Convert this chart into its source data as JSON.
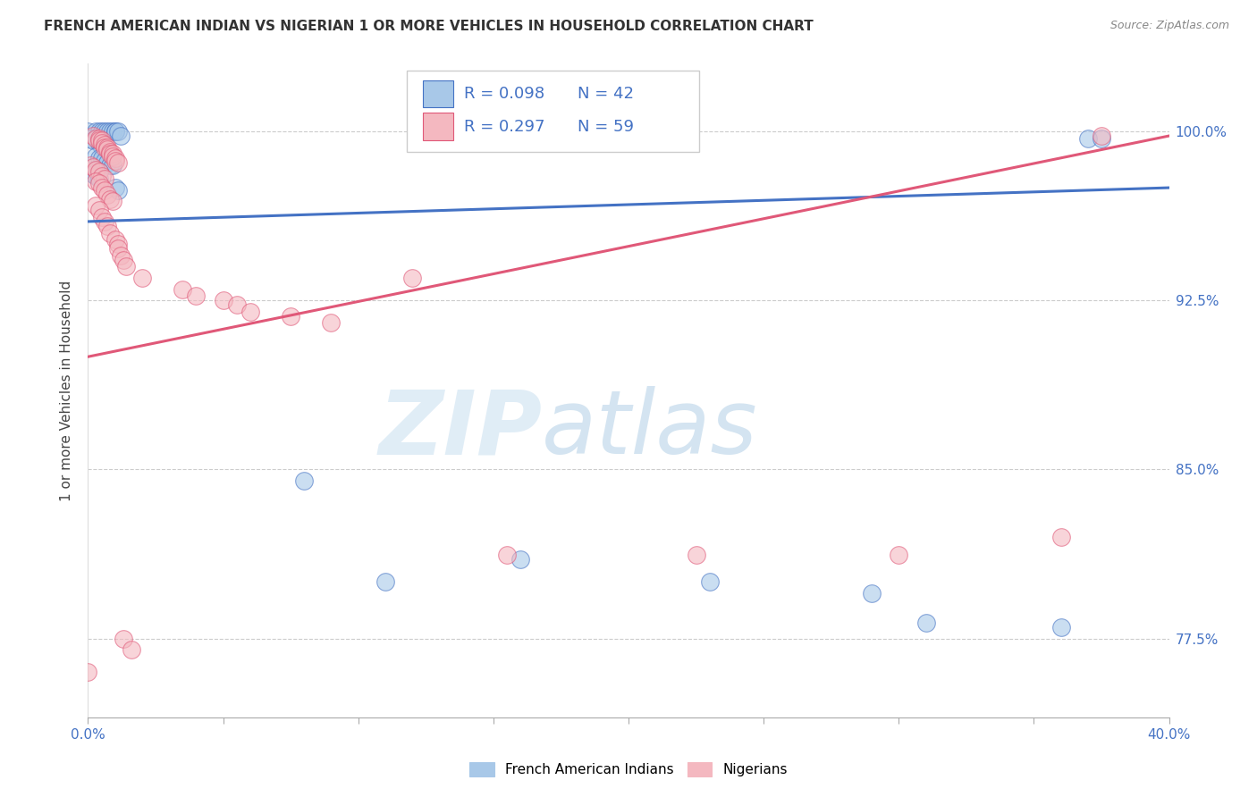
{
  "title": "FRENCH AMERICAN INDIAN VS NIGERIAN 1 OR MORE VEHICLES IN HOUSEHOLD CORRELATION CHART",
  "source": "Source: ZipAtlas.com",
  "ylabel": "1 or more Vehicles in Household",
  "legend_blue_label": "French American Indians",
  "legend_pink_label": "Nigerians",
  "legend_blue_R": "R = 0.098",
  "legend_blue_N": "N = 42",
  "legend_pink_R": "R = 0.297",
  "legend_pink_N": "N = 59",
  "blue_color": "#A8C8E8",
  "pink_color": "#F4B8C0",
  "line_blue": "#4472C4",
  "line_pink": "#E05878",
  "watermark_zip": "ZIP",
  "watermark_atlas": "atlas",
  "blue_points": [
    [
      0.0,
      1.0
    ],
    [
      0.003,
      1.0
    ],
    [
      0.004,
      1.0
    ],
    [
      0.005,
      1.0
    ],
    [
      0.006,
      1.0
    ],
    [
      0.007,
      1.0
    ],
    [
      0.008,
      1.0
    ],
    [
      0.009,
      1.0
    ],
    [
      0.01,
      1.0
    ],
    [
      0.01,
      1.0
    ],
    [
      0.011,
      1.0
    ],
    [
      0.012,
      0.998
    ],
    [
      0.001,
      0.997
    ],
    [
      0.002,
      0.996
    ],
    [
      0.004,
      0.995
    ],
    [
      0.005,
      0.993
    ],
    [
      0.006,
      0.992
    ],
    [
      0.007,
      0.991
    ],
    [
      0.008,
      0.99
    ],
    [
      0.003,
      0.989
    ],
    [
      0.004,
      0.988
    ],
    [
      0.005,
      0.988
    ],
    [
      0.006,
      0.987
    ],
    [
      0.007,
      0.986
    ],
    [
      0.008,
      0.985
    ],
    [
      0.009,
      0.985
    ],
    [
      0.003,
      0.983
    ],
    [
      0.004,
      0.982
    ],
    [
      0.002,
      0.981
    ],
    [
      0.003,
      0.98
    ],
    [
      0.004,
      0.979
    ],
    [
      0.01,
      0.975
    ],
    [
      0.011,
      0.974
    ],
    [
      0.08,
      0.845
    ],
    [
      0.11,
      0.8
    ],
    [
      0.16,
      0.81
    ],
    [
      0.23,
      0.8
    ],
    [
      0.29,
      0.795
    ],
    [
      0.31,
      0.782
    ],
    [
      0.36,
      0.78
    ],
    [
      0.37,
      0.997
    ],
    [
      0.375,
      0.997
    ]
  ],
  "pink_points": [
    [
      0.0,
      0.76
    ],
    [
      0.002,
      0.998
    ],
    [
      0.003,
      0.997
    ],
    [
      0.004,
      0.997
    ],
    [
      0.004,
      0.996
    ],
    [
      0.005,
      0.996
    ],
    [
      0.005,
      0.995
    ],
    [
      0.006,
      0.994
    ],
    [
      0.006,
      0.993
    ],
    [
      0.007,
      0.993
    ],
    [
      0.007,
      0.992
    ],
    [
      0.008,
      0.991
    ],
    [
      0.008,
      0.99
    ],
    [
      0.009,
      0.99
    ],
    [
      0.009,
      0.989
    ],
    [
      0.01,
      0.988
    ],
    [
      0.01,
      0.987
    ],
    [
      0.011,
      0.986
    ],
    [
      0.001,
      0.985
    ],
    [
      0.002,
      0.984
    ],
    [
      0.003,
      0.983
    ],
    [
      0.004,
      0.982
    ],
    [
      0.005,
      0.98
    ],
    [
      0.006,
      0.979
    ],
    [
      0.003,
      0.978
    ],
    [
      0.004,
      0.977
    ],
    [
      0.005,
      0.975
    ],
    [
      0.006,
      0.974
    ],
    [
      0.007,
      0.972
    ],
    [
      0.008,
      0.97
    ],
    [
      0.009,
      0.969
    ],
    [
      0.003,
      0.967
    ],
    [
      0.004,
      0.965
    ],
    [
      0.005,
      0.962
    ],
    [
      0.006,
      0.96
    ],
    [
      0.007,
      0.958
    ],
    [
      0.008,
      0.955
    ],
    [
      0.01,
      0.952
    ],
    [
      0.011,
      0.95
    ],
    [
      0.011,
      0.948
    ],
    [
      0.012,
      0.945
    ],
    [
      0.013,
      0.943
    ],
    [
      0.014,
      0.94
    ],
    [
      0.02,
      0.935
    ],
    [
      0.035,
      0.93
    ],
    [
      0.04,
      0.927
    ],
    [
      0.05,
      0.925
    ],
    [
      0.055,
      0.923
    ],
    [
      0.06,
      0.92
    ],
    [
      0.075,
      0.918
    ],
    [
      0.09,
      0.915
    ],
    [
      0.12,
      0.935
    ],
    [
      0.155,
      0.812
    ],
    [
      0.225,
      0.812
    ],
    [
      0.3,
      0.812
    ],
    [
      0.36,
      0.82
    ],
    [
      0.375,
      0.998
    ],
    [
      0.013,
      0.775
    ],
    [
      0.016,
      0.77
    ]
  ],
  "xmin": 0.0,
  "xmax": 0.4,
  "ymin": 0.74,
  "ymax": 1.03,
  "y_tick_vals": [
    0.775,
    0.85,
    0.925,
    1.0
  ],
  "y_tick_labels": [
    "77.5%",
    "85.0%",
    "92.5%",
    "100.0%"
  ],
  "blue_line_x": [
    0.0,
    0.4
  ],
  "blue_line_y": [
    0.96,
    0.975
  ],
  "pink_line_x": [
    0.0,
    0.4
  ],
  "pink_line_y": [
    0.9,
    0.998
  ]
}
